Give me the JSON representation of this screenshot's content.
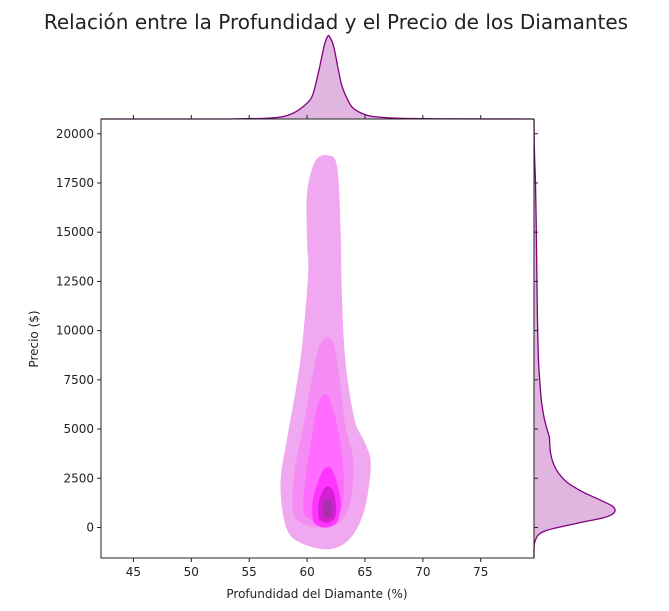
{
  "chart_data": {
    "type": "kde-jointplot",
    "title": "Relación entre la Profundidad y el Precio de los Diamantes",
    "xlabel": "Profundidad del Diamante (%)",
    "ylabel": "Precio ($)",
    "xlim": [
      42.2,
      79.6
    ],
    "ylim": [
      -1550,
      20750
    ],
    "xticks": [
      45,
      50,
      55,
      60,
      65,
      70,
      75
    ],
    "yticks": [
      0,
      2500,
      5000,
      7500,
      10000,
      12500,
      15000,
      17500,
      20000
    ],
    "colors": {
      "kde_outer": "#f0a8f0",
      "kde_light": "#f48cf4",
      "kde_mid": "#ff6cff",
      "kde_strong": "#ff35ff",
      "kde_core": "#d420d4",
      "kde_peak": "#a830a8",
      "marginal_line": "#800080",
      "marginal_fill": "#e0b6e0"
    },
    "marginal_x": {
      "x": [
        42.2,
        52,
        54,
        56,
        57,
        58,
        59,
        60,
        60.5,
        61,
        61.5,
        61.8,
        62,
        62.3,
        62.7,
        63,
        63.5,
        64,
        65,
        66,
        68,
        72,
        79.6
      ],
      "density": [
        0.0,
        0.0,
        0.001,
        0.003,
        0.006,
        0.015,
        0.04,
        0.09,
        0.14,
        0.27,
        0.42,
        0.47,
        0.46,
        0.41,
        0.28,
        0.19,
        0.11,
        0.06,
        0.025,
        0.012,
        0.004,
        0.001,
        0.0
      ]
    },
    "marginal_y": {
      "y": [
        -1550,
        -700,
        -200,
        200,
        500,
        700,
        900,
        1100,
        1400,
        1800,
        2300,
        2800,
        3300,
        3800,
        4200,
        4600,
        5000,
        5600,
        6400,
        7300,
        8500,
        10500,
        13000,
        15500,
        17500,
        18500,
        19500,
        20750
      ],
      "density": [
        0.0,
        0.01,
        0.1,
        0.42,
        0.7,
        0.79,
        0.81,
        0.78,
        0.66,
        0.49,
        0.33,
        0.24,
        0.19,
        0.165,
        0.158,
        0.153,
        0.13,
        0.1,
        0.075,
        0.06,
        0.045,
        0.035,
        0.028,
        0.022,
        0.015,
        0.008,
        0.003,
        0.0
      ]
    },
    "density_contours": [
      {
        "level": "outer",
        "points": [
          [
            58.2,
            0
          ],
          [
            57.7,
            2200
          ],
          [
            58.3,
            4600
          ],
          [
            59.2,
            7600
          ],
          [
            59.7,
            10000
          ],
          [
            60.1,
            13000
          ],
          [
            60.0,
            14500
          ],
          [
            60.0,
            17000
          ],
          [
            60.7,
            18600
          ],
          [
            61.8,
            18900
          ],
          [
            62.6,
            18300
          ],
          [
            62.9,
            15000
          ],
          [
            63.0,
            12000
          ],
          [
            63.3,
            8500
          ],
          [
            64.1,
            5500
          ],
          [
            65.0,
            4300
          ],
          [
            65.5,
            3200
          ],
          [
            65.0,
            1000
          ],
          [
            63.8,
            -500
          ],
          [
            62.0,
            -1100
          ],
          [
            59.5,
            -800
          ]
        ]
      },
      {
        "level": "light",
        "points": [
          [
            58.8,
            800
          ],
          [
            58.9,
            2800
          ],
          [
            59.7,
            5200
          ],
          [
            60.5,
            7800
          ],
          [
            61.2,
            9400
          ],
          [
            62.2,
            9500
          ],
          [
            62.8,
            7600
          ],
          [
            63.3,
            5200
          ],
          [
            64.0,
            3300
          ],
          [
            63.7,
            1200
          ],
          [
            62.7,
            200
          ],
          [
            61.0,
            0
          ],
          [
            59.6,
            200
          ]
        ]
      },
      {
        "level": "mid",
        "points": [
          [
            59.7,
            800
          ],
          [
            59.9,
            2600
          ],
          [
            60.4,
            4600
          ],
          [
            61.0,
            6400
          ],
          [
            61.8,
            6700
          ],
          [
            62.6,
            5200
          ],
          [
            63.1,
            3300
          ],
          [
            63.1,
            1300
          ],
          [
            62.4,
            400
          ],
          [
            61.0,
            300
          ]
        ]
      },
      {
        "level": "strong",
        "points": [
          [
            60.5,
            400
          ],
          [
            60.5,
            1400
          ],
          [
            61.0,
            2400
          ],
          [
            61.5,
            3000
          ],
          [
            62.1,
            3000
          ],
          [
            62.6,
            2200
          ],
          [
            62.9,
            1200
          ],
          [
            62.6,
            300
          ],
          [
            61.7,
            0
          ],
          [
            60.9,
            100
          ]
        ]
      },
      {
        "level": "core",
        "points": [
          [
            61.0,
            500
          ],
          [
            61.0,
            1200
          ],
          [
            61.3,
            1800
          ],
          [
            61.8,
            2100
          ],
          [
            62.3,
            1800
          ],
          [
            62.5,
            1100
          ],
          [
            62.4,
            500
          ],
          [
            61.8,
            250
          ],
          [
            61.3,
            300
          ]
        ]
      },
      {
        "level": "peak",
        "points": [
          [
            61.4,
            650
          ],
          [
            61.4,
            1100
          ],
          [
            61.7,
            1450
          ],
          [
            62.1,
            1300
          ],
          [
            62.2,
            900
          ],
          [
            62.0,
            550
          ],
          [
            61.7,
            480
          ]
        ]
      }
    ]
  }
}
